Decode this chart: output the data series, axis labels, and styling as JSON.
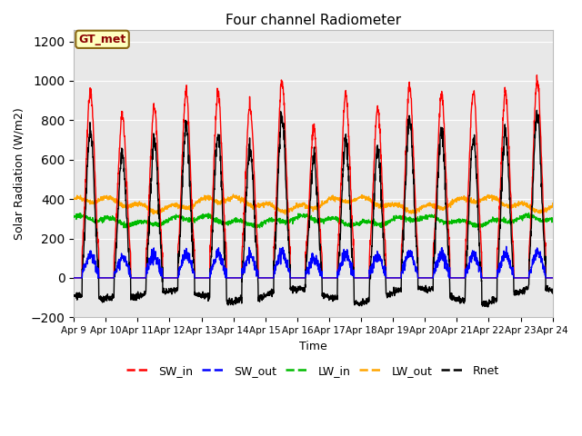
{
  "title": "Four channel Radiometer",
  "xlabel": "Time",
  "ylabel": "Solar Radiation (W/m2)",
  "ylim": [
    -200,
    1260
  ],
  "yticks": [
    -200,
    0,
    200,
    400,
    600,
    800,
    1000,
    1200
  ],
  "x_labels": [
    "Apr 9",
    "Apr 10",
    "Apr 11",
    "Apr 12",
    "Apr 13",
    "Apr 14",
    "Apr 15",
    "Apr 16",
    "Apr 17",
    "Apr 18",
    "Apr 19",
    "Apr 20",
    "Apr 21",
    "Apr 22",
    "Apr 23",
    "Apr 24"
  ],
  "n_days": 15,
  "annotation_text": "GT_met",
  "annotation_color": "#8B0000",
  "annotation_bg": "#FFFFC0",
  "background_color": "#E8E8E8",
  "series": {
    "SW_in": {
      "color": "#FF0000",
      "lw": 1.0
    },
    "SW_out": {
      "color": "#0000FF",
      "lw": 1.0
    },
    "LW_in": {
      "color": "#00BB00",
      "lw": 1.0
    },
    "LW_out": {
      "color": "#FFA500",
      "lw": 1.0
    },
    "Rnet": {
      "color": "#000000",
      "lw": 1.0
    }
  },
  "peaks_swin": [
    960,
    830,
    870,
    950,
    940,
    875,
    1000,
    755,
    930,
    855,
    970,
    940,
    950,
    940,
    1005
  ],
  "lw_in_base": 290,
  "lw_out_base": 375,
  "night_rnet": -90
}
